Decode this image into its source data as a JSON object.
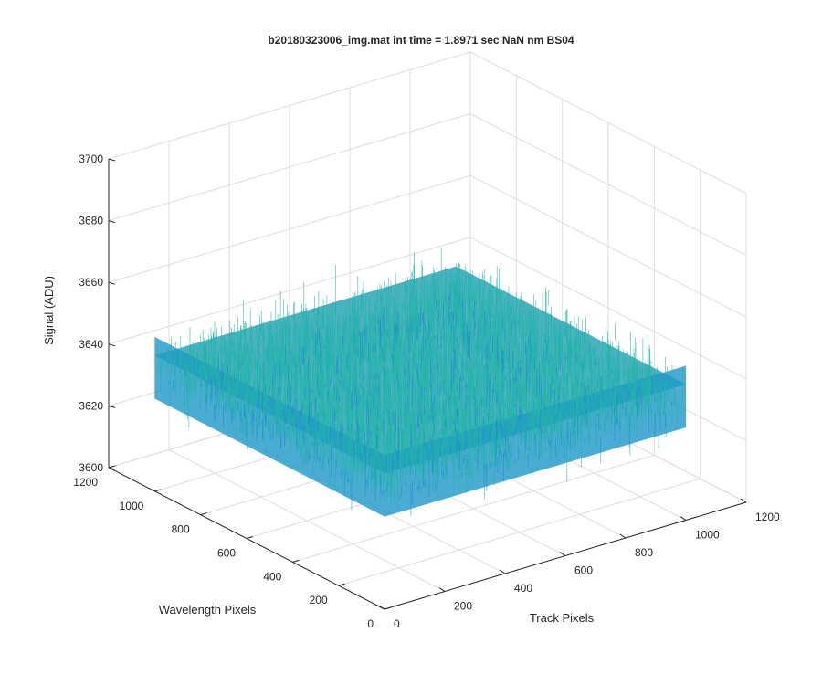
{
  "chart_data": {
    "type": "surface",
    "title": "b20180323006_img.mat int time = 1.8971 sec  NaN nm BS04",
    "xlabel": "Track Pixels",
    "ylabel": "Wavelength Pixels",
    "zlabel": "Signal (ADU)",
    "xlim": [
      0,
      1200
    ],
    "ylim": [
      0,
      1200
    ],
    "zlim": [
      3600,
      3700
    ],
    "xticks": [
      "0",
      "200",
      "400",
      "600",
      "800",
      "1000",
      "1200"
    ],
    "yticks": [
      "0",
      "200",
      "400",
      "600",
      "800",
      "1000",
      "1200"
    ],
    "zticks": [
      "3600",
      "3620",
      "3640",
      "3660",
      "3680",
      "3700"
    ],
    "surface_extent": {
      "x": [
        0,
        1000
      ],
      "y": [
        0,
        1000
      ]
    },
    "mean_signal": 3640,
    "noise_range": [
      3612,
      3678
    ],
    "grid": true,
    "colormap": "parula",
    "colors": {
      "low": "#1f8bd4",
      "mid": "#22b3a8",
      "high": "#e6c03a"
    }
  }
}
